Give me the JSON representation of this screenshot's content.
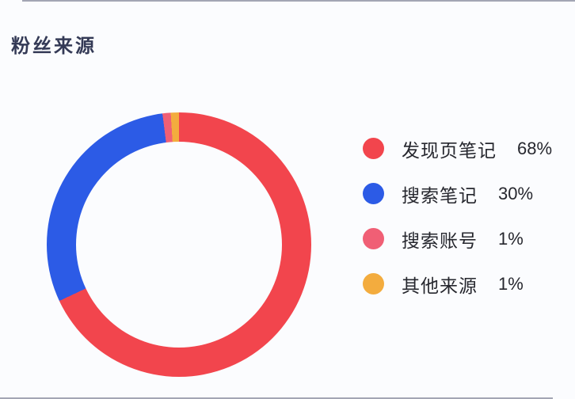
{
  "chart_data": {
    "type": "pie",
    "subtype": "donut",
    "title": "粉丝来源",
    "start_angle_deg": 0,
    "direction": "clockwise",
    "legend_position": "right",
    "values_unit": "percent",
    "series": [
      {
        "name": "发现页笔记",
        "value": 68,
        "display": "68%",
        "color": "#F2454D"
      },
      {
        "name": "搜索笔记",
        "value": 30,
        "display": "30%",
        "color": "#2C5BE6"
      },
      {
        "name": "搜索账号",
        "value": 1,
        "display": "1%",
        "color": "#F05F75"
      },
      {
        "name": "其他来源",
        "value": 1,
        "display": "1%",
        "color": "#F3AC3E"
      }
    ]
  }
}
